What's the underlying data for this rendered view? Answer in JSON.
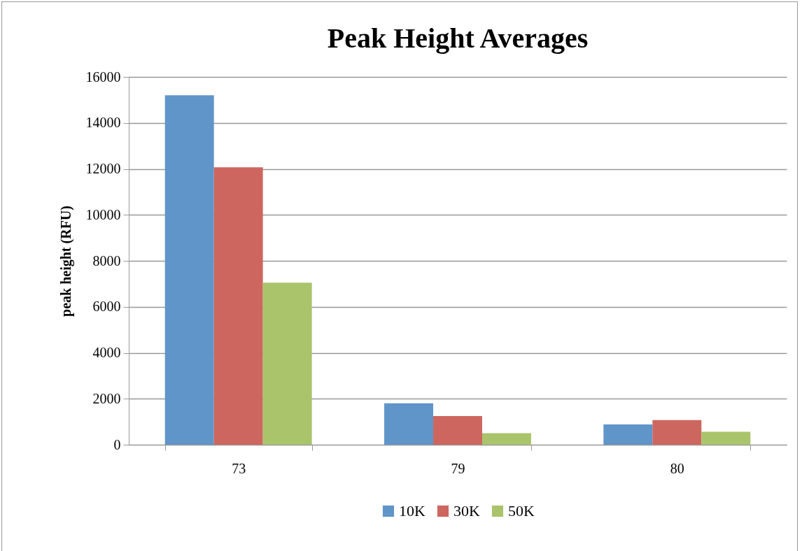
{
  "chart_data": {
    "type": "bar",
    "title": "Peak Height Averages",
    "ylabel": "peak height (RFU)",
    "categories": [
      "73",
      "79",
      "80"
    ],
    "series": [
      {
        "name": "10K",
        "color": "#5f95c8",
        "values": [
          15200,
          1800,
          880
        ]
      },
      {
        "name": "30K",
        "color": "#cd665f",
        "values": [
          12070,
          1250,
          1070
        ]
      },
      {
        "name": "50K",
        "color": "#a9c46a",
        "values": [
          7050,
          500,
          560
        ]
      }
    ],
    "ylim": [
      0,
      16000
    ],
    "yticks": [
      0,
      2000,
      4000,
      6000,
      8000,
      10000,
      12000,
      14000,
      16000
    ],
    "grid": "y",
    "legend": "bottom"
  }
}
